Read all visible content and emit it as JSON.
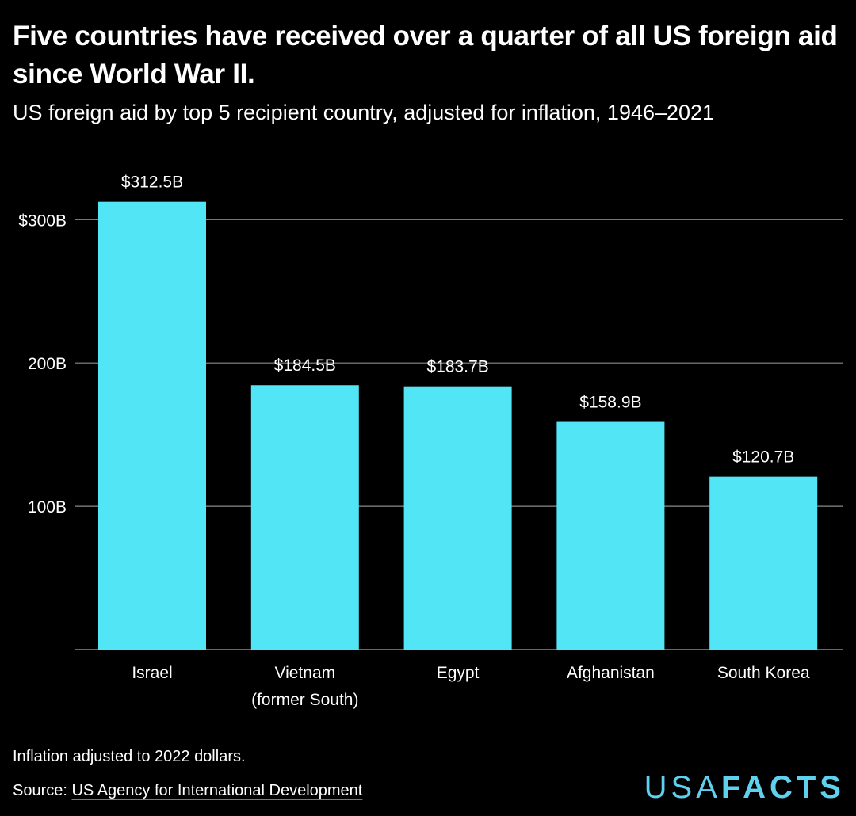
{
  "title": "Five countries have received over a quarter of all US foreign aid since World War II.",
  "subtitle": "US foreign aid by top 5 recipient country, adjusted for inflation, 1946–2021",
  "footer": {
    "note": "Inflation adjusted to 2022 dollars.",
    "source_label": "Source: ",
    "source_link": "US Agency for International Development"
  },
  "logo": {
    "part1": "USA",
    "part2": "FACTS"
  },
  "colors": {
    "background": "#000000",
    "bar": "#52e5f6",
    "gridline": "#8a8a8a",
    "text": "#ffffff"
  },
  "chart_data": {
    "type": "bar",
    "categories": [
      [
        "Israel"
      ],
      [
        "Vietnam",
        "(former South)"
      ],
      [
        "Egypt"
      ],
      [
        "Afghanistan"
      ],
      [
        "South Korea"
      ]
    ],
    "values": [
      312.5,
      184.5,
      183.7,
      158.9,
      120.7
    ],
    "data_labels": [
      "$312.5B",
      "$184.5B",
      "$183.7B",
      "$158.9B",
      "$120.7B"
    ],
    "yticks": [
      100,
      200,
      300
    ],
    "ytick_labels": [
      "100B",
      "200B",
      "$300B"
    ],
    "ylim": [
      0,
      350
    ],
    "grid": true,
    "legend": "none"
  }
}
